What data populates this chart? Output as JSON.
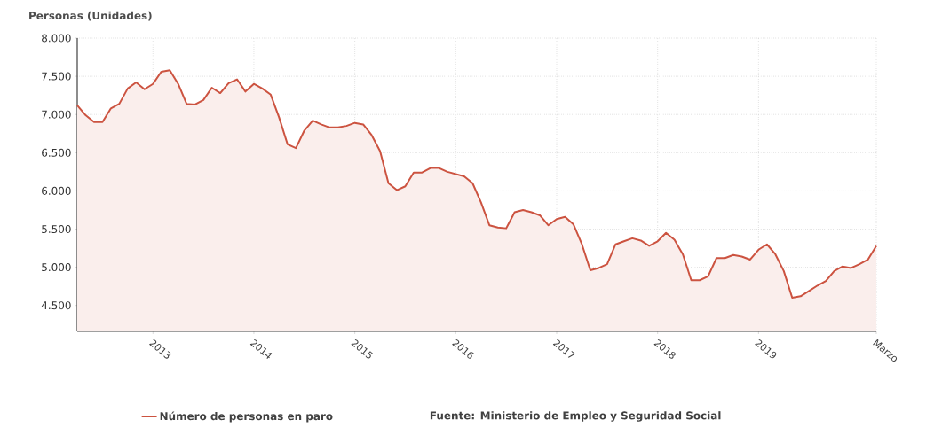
{
  "chart_data": {
    "type": "area",
    "ylabel": "Personas (Unidades)",
    "annotations": [
      "Fuente: Ministerio de Empleo y Seguridad Social"
    ],
    "x": [
      "2012-04",
      "2012-05",
      "2012-06",
      "2012-07",
      "2012-08",
      "2012-09",
      "2012-10",
      "2012-11",
      "2012-12",
      "2013-01",
      "2013-02",
      "2013-03",
      "2013-04",
      "2013-05",
      "2013-06",
      "2013-07",
      "2013-08",
      "2013-09",
      "2013-10",
      "2013-11",
      "2013-12",
      "2014-01",
      "2014-02",
      "2014-03",
      "2014-04",
      "2014-05",
      "2014-06",
      "2014-07",
      "2014-08",
      "2014-09",
      "2014-10",
      "2014-11",
      "2014-12",
      "2015-01",
      "2015-02",
      "2015-03",
      "2015-04",
      "2015-05",
      "2015-06",
      "2015-07",
      "2015-08",
      "2015-09",
      "2015-10",
      "2015-11",
      "2015-12",
      "2016-01",
      "2016-02",
      "2016-03",
      "2016-04",
      "2016-05",
      "2016-06",
      "2016-07",
      "2016-08",
      "2016-09",
      "2016-10",
      "2016-11",
      "2016-12",
      "2017-01",
      "2017-02",
      "2017-03",
      "2017-04",
      "2017-05",
      "2017-06",
      "2017-07",
      "2017-08",
      "2017-09",
      "2017-10",
      "2017-11",
      "2017-12",
      "2018-01",
      "2018-02",
      "2018-03",
      "2018-04",
      "2018-05",
      "2018-06",
      "2018-07",
      "2018-08",
      "2018-09",
      "2018-10",
      "2018-11",
      "2018-12",
      "2019-01",
      "2019-02",
      "2019-03",
      "2019-04",
      "2019-05",
      "2019-06",
      "2019-07",
      "2019-08",
      "2019-09",
      "2019-10",
      "2019-11",
      "2019-12",
      "2020-01",
      "2020-02",
      "2020-03"
    ],
    "series": [
      {
        "name": "Número de personas en paro",
        "color": "#cc5340",
        "values": [
          7120,
          6990,
          6900,
          6900,
          7080,
          7140,
          7340,
          7420,
          7330,
          7400,
          7560,
          7580,
          7400,
          7140,
          7130,
          7190,
          7350,
          7280,
          7410,
          7460,
          7300,
          7400,
          7340,
          7260,
          6960,
          6610,
          6560,
          6790,
          6920,
          6870,
          6830,
          6830,
          6850,
          6890,
          6870,
          6730,
          6520,
          6100,
          6010,
          6060,
          6240,
          6240,
          6300,
          6300,
          6250,
          6220,
          6190,
          6100,
          5850,
          5550,
          5520,
          5510,
          5720,
          5750,
          5720,
          5680,
          5550,
          5630,
          5660,
          5560,
          5300,
          4960,
          4990,
          5040,
          5300,
          5340,
          5380,
          5350,
          5280,
          5340,
          5450,
          5360,
          5170,
          4830,
          4830,
          4880,
          5120,
          5120,
          5160,
          5140,
          5100,
          5230,
          5300,
          5170,
          4950,
          4600,
          4620,
          4690,
          4760,
          4820,
          4950,
          5010,
          4990,
          5040,
          5100,
          5280
        ]
      }
    ],
    "xlim": [
      "2012-04",
      "2020-03"
    ],
    "xticks": [
      {
        "value": "2013-01",
        "label": "2013"
      },
      {
        "value": "2014-01",
        "label": "2014"
      },
      {
        "value": "2015-01",
        "label": "2015"
      },
      {
        "value": "2016-01",
        "label": "2016"
      },
      {
        "value": "2017-01",
        "label": "2017"
      },
      {
        "value": "2018-01",
        "label": "2018"
      },
      {
        "value": "2019-01",
        "label": "2019"
      },
      {
        "value": "2020-03",
        "label": "Marzo"
      }
    ],
    "ylim": [
      4160,
      8000
    ],
    "yticks": [
      {
        "value": 4500,
        "label": "4.500"
      },
      {
        "value": 5000,
        "label": "5.000"
      },
      {
        "value": 5500,
        "label": "5.500"
      },
      {
        "value": 6000,
        "label": "6.000"
      },
      {
        "value": 6500,
        "label": "6.500"
      },
      {
        "value": 7000,
        "label": "7.000"
      },
      {
        "value": 7500,
        "label": "7.500"
      },
      {
        "value": 8000,
        "label": "8.000"
      }
    ],
    "grid": true,
    "legend": "bottom",
    "line_style": "solid"
  }
}
